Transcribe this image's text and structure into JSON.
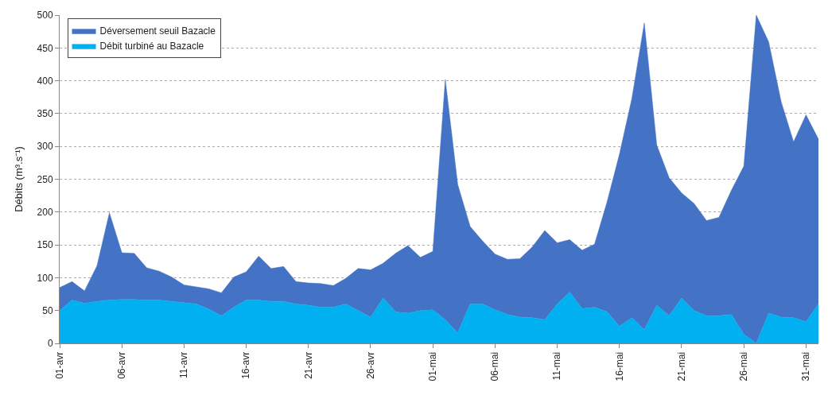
{
  "chart_data": {
    "type": "area",
    "stacked": true,
    "ylabel": "Débits (m³.s⁻¹)",
    "categories": [
      "01-avr",
      null,
      null,
      null,
      null,
      "06-avr",
      null,
      null,
      null,
      null,
      "11-avr",
      null,
      null,
      null,
      null,
      "16-avr",
      null,
      null,
      null,
      null,
      "21-avr",
      null,
      null,
      null,
      null,
      "26-avr",
      null,
      null,
      null,
      null,
      "01-mai",
      null,
      null,
      null,
      null,
      "06-mai",
      null,
      null,
      null,
      null,
      "11-mai",
      null,
      null,
      null,
      null,
      "16-mai",
      null,
      null,
      null,
      null,
      "21-mai",
      null,
      null,
      null,
      null,
      "26-mai",
      null,
      null,
      null,
      null,
      "31-mai",
      null
    ],
    "series": [
      {
        "name": "Débit turbiné au Bazacle",
        "color": "#00b0f0",
        "values": [
          50,
          66,
          61,
          64,
          66,
          67,
          67,
          66,
          66,
          64,
          62,
          60,
          52,
          42,
          55,
          66,
          66,
          64,
          64,
          60,
          58,
          55,
          55,
          60,
          50,
          40,
          69,
          48,
          46,
          50,
          51,
          36,
          16,
          60,
          60,
          51,
          44,
          40,
          39,
          36,
          60,
          78,
          53,
          55,
          48,
          26,
          39,
          21,
          58,
          42,
          69,
          50,
          42,
          42,
          44,
          14,
          0,
          46,
          40,
          39,
          33,
          60
        ]
      },
      {
        "name": "Déversement seuil Bazacle",
        "color": "#4472c4",
        "values": [
          35,
          28,
          19,
          54,
          133,
          71,
          70,
          49,
          44,
          37,
          27,
          26,
          31,
          35,
          46,
          43,
          67,
          50,
          53,
          34,
          34,
          36,
          33,
          39,
          64,
          72,
          53,
          89,
          103,
          81,
          89,
          366,
          226,
          118,
          96,
          85,
          84,
          89,
          108,
          136,
          93,
          80,
          89,
          96,
          167,
          262,
          334,
          467,
          244,
          210,
          160,
          163,
          145,
          150,
          189,
          256,
          500,
          413,
          328,
          268,
          315,
          251
        ]
      }
    ],
    "ylim": [
      0,
      500
    ],
    "yticks": [
      0,
      50,
      100,
      150,
      200,
      250,
      300,
      350,
      400,
      450,
      500
    ],
    "grid": "y",
    "legend": "top left"
  }
}
